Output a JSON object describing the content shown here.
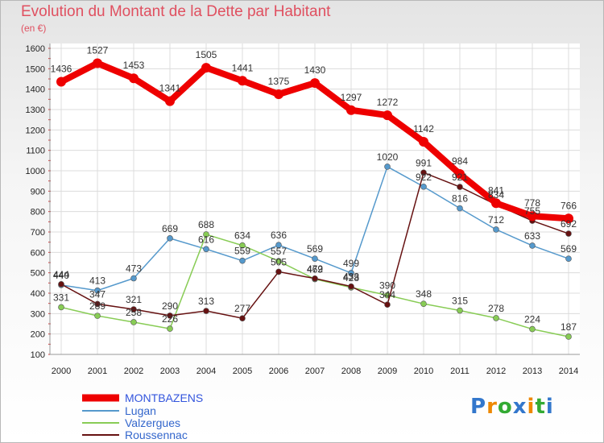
{
  "header": {
    "title": "Evolution du Montant de la Dette par Habitant",
    "unit": "(en €)"
  },
  "logo": {
    "text": "Proxiti"
  },
  "chart_data": {
    "type": "line",
    "title": "Evolution du Montant de la Dette par Habitant",
    "ylabel": "(en €)",
    "xlabel": "",
    "ylim": [
      100,
      1600
    ],
    "yticks": [
      100,
      200,
      300,
      400,
      500,
      600,
      700,
      800,
      900,
      1000,
      1100,
      1200,
      1300,
      1400,
      1500,
      1600
    ],
    "x": [
      "2000",
      "2001",
      "2002",
      "2003",
      "2004",
      "2005",
      "2006",
      "2007",
      "2008",
      "2009",
      "2010",
      "2011",
      "2012",
      "2013",
      "2014"
    ],
    "grid": true,
    "legend_position": "bottom-left",
    "series": [
      {
        "name": "MONTBAZENS",
        "color": "#ee0000",
        "values": [
          1436,
          1527,
          1453,
          1341,
          1505,
          1441,
          1375,
          1430,
          1297,
          1272,
          1142,
          984,
          841,
          778,
          766
        ]
      },
      {
        "name": "Lugan",
        "color": "#5599cc",
        "values": [
          440,
          413,
          473,
          669,
          616,
          559,
          636,
          569,
          499,
          1020,
          922,
          816,
          712,
          633,
          569
        ]
      },
      {
        "name": "Valzergues",
        "color": "#88cc55",
        "values": [
          331,
          289,
          258,
          226,
          688,
          634,
          557,
          469,
          428,
          390,
          348,
          315,
          278,
          224,
          187
        ]
      },
      {
        "name": "Roussennac",
        "color": "#661111",
        "values": [
          444,
          347,
          321,
          290,
          313,
          277,
          505,
          472,
          433,
          344,
          991,
          921,
          834,
          755,
          692
        ]
      }
    ]
  }
}
